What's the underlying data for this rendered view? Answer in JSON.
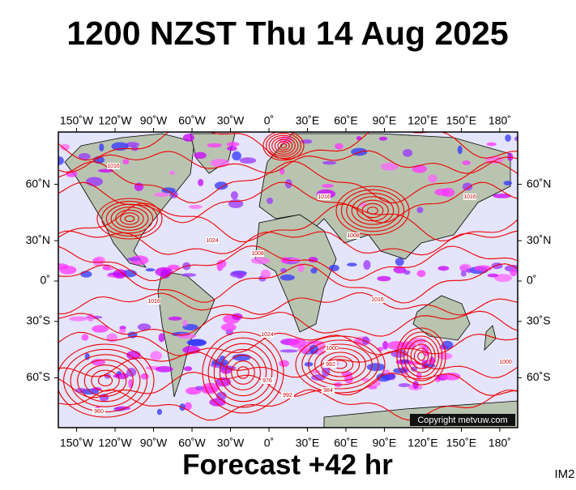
{
  "header": {
    "title": "1200 NZST Thu 14 Aug 2025"
  },
  "map": {
    "projection": "mercator",
    "xticks": [
      {
        "value": -150,
        "label": "150˚W"
      },
      {
        "value": -120,
        "label": "120˚W"
      },
      {
        "value": -90,
        "label": "90˚W"
      },
      {
        "value": -60,
        "label": "60˚W"
      },
      {
        "value": -30,
        "label": "30˚W"
      },
      {
        "value": 0,
        "label": "0˚"
      },
      {
        "value": 30,
        "label": "30˚E"
      },
      {
        "value": 60,
        "label": "60˚E"
      },
      {
        "value": 90,
        "label": "90˚E"
      },
      {
        "value": 120,
        "label": "120˚E"
      },
      {
        "value": 150,
        "label": "150˚E"
      },
      {
        "value": 180,
        "label": "180˚"
      }
    ],
    "yticks": [
      {
        "value": 60,
        "label": "60˚N"
      },
      {
        "value": 30,
        "label": "30˚N"
      },
      {
        "value": 0,
        "label": "0˚"
      },
      {
        "value": -30,
        "label": "30˚S"
      },
      {
        "value": -60,
        "label": "60˚S"
      }
    ],
    "isobar_labels": [
      "1016",
      "1024",
      "1008",
      "1016",
      "1008",
      "1016",
      "1016",
      "1000",
      "984",
      "992",
      "976",
      "960",
      "992",
      "1000",
      "1024",
      "1016"
    ],
    "copyright": "Copyright metvuw.com"
  },
  "footer": {
    "forecast": "Forecast +42 hr",
    "code": "IM2"
  }
}
